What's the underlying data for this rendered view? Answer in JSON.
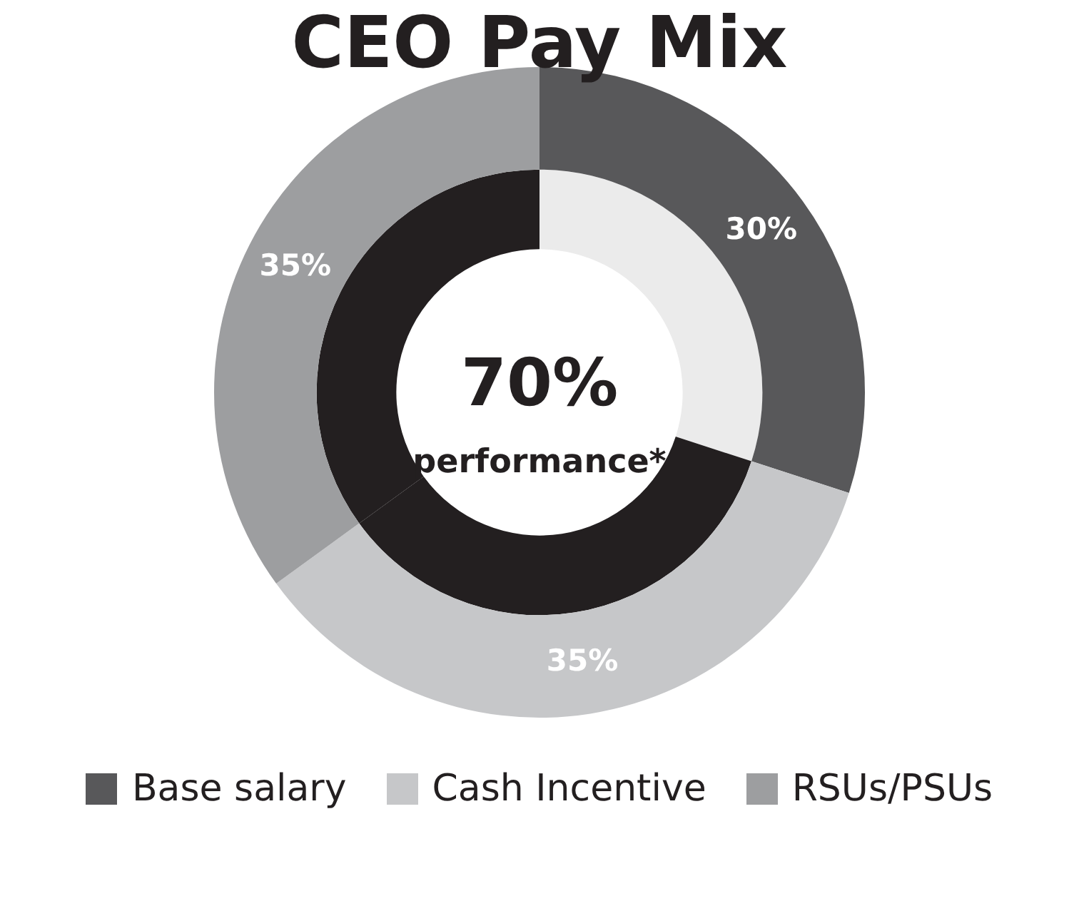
{
  "chart_data": {
    "type": "donut",
    "title": "CEO Pay Mix",
    "categories": [
      "Base salary",
      "Cash Incentive",
      "RSUs/PSUs"
    ],
    "series": [
      {
        "values": [
          30,
          35,
          35
        ],
        "colors": [
          "#58585a",
          "#c6c7c9",
          "#9d9ea0"
        ],
        "value_labels": [
          "30%",
          "35%",
          "35%"
        ]
      },
      {
        "values": [
          30,
          35,
          35
        ],
        "colors": [
          "#ebebeb",
          "#231f20",
          "#231f20"
        ]
      }
    ],
    "annotations": [
      "70%",
      "performance*"
    ],
    "legend": "bottom"
  }
}
